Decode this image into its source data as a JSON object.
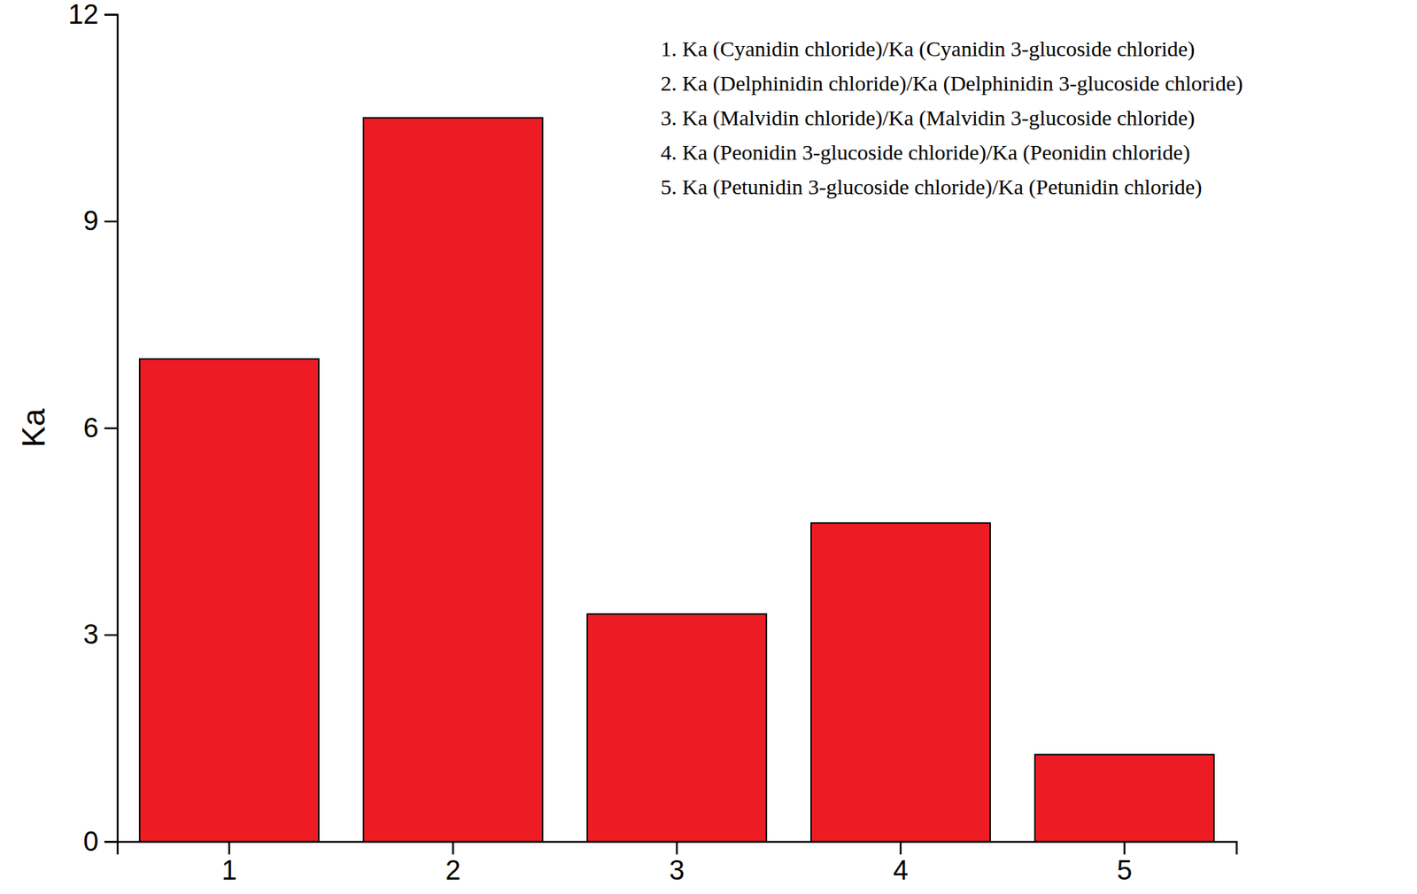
{
  "chart_data": {
    "type": "bar",
    "categories": [
      "1",
      "2",
      "3",
      "4",
      "5"
    ],
    "values": [
      7.0,
      10.5,
      3.3,
      4.62,
      1.26
    ],
    "color": "#ed1c24",
    "y_label": "Ka",
    "annotations": [
      "1. Ka (Cyanidin chloride)/Ka (Cyanidin 3-glucoside chloride)",
      "2. Ka (Delphinidin chloride)/Ka (Delphinidin 3-glucoside chloride)",
      "3. Ka (Malvidin chloride)/Ka (Malvidin 3-glucoside chloride)",
      "4. Ka (Peonidin 3-glucoside chloride)/Ka (Peonidin chloride)",
      "5. Ka (Petunidin 3-glucoside chloride)/Ka (Petunidin chloride)"
    ],
    "ylim": [
      0,
      12
    ],
    "yticks": [
      0,
      3,
      6,
      9,
      12
    ]
  }
}
